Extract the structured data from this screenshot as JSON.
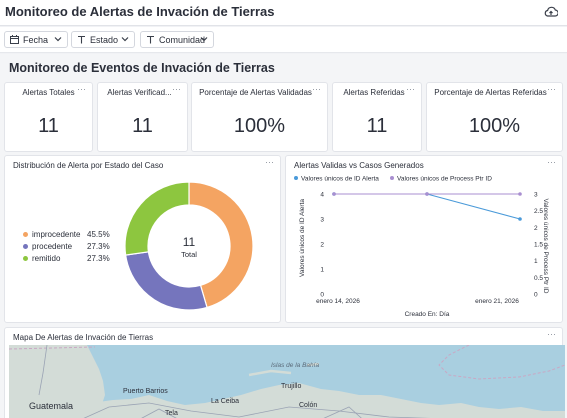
{
  "header": {
    "title": "Monitoreo de Alertas de Invación de Tierras",
    "upload_icon": "cloud-upload-icon"
  },
  "filters": [
    {
      "label": "Fecha",
      "icon": "calendar-icon"
    },
    {
      "label": "Estado",
      "icon": "text-type-icon"
    },
    {
      "label": "Comunidad",
      "icon": "text-type-icon"
    }
  ],
  "section": {
    "title": "Monitoreo de Eventos de Invación de Tierras"
  },
  "kpis": [
    {
      "title": "Alertas Totales",
      "value": "11"
    },
    {
      "title": "Alertas Verificad...",
      "value": "11"
    },
    {
      "title": "Porcentaje de Alertas Validadas",
      "value": "100%"
    },
    {
      "title": "Alertas Referidas",
      "value": "11"
    },
    {
      "title": "Porcentaje de Alertas Referidas",
      "value": "100%"
    }
  ],
  "menu_glyph": "···",
  "donut": {
    "title": "Distribución de Alerta por Estado del Caso",
    "center_value": "11",
    "center_label": "Total",
    "chart_data": {
      "type": "pie",
      "categories": [
        "improcedente",
        "procedente",
        "remitido"
      ],
      "values": [
        45.5,
        27.3,
        27.3
      ],
      "labels": [
        "45.5%",
        "27.3%",
        "27.3%"
      ],
      "colors": [
        "#f4a462",
        "#7575bd",
        "#8dc63f"
      ],
      "total": 11,
      "legend": "left"
    }
  },
  "linechart": {
    "title": "Alertas Validas vs Casos Generados",
    "chart_data": {
      "type": "line",
      "x": [
        "2026-01-12",
        "2026-01-19",
        "2026-01-26"
      ],
      "xticks": [
        "enero 14, 2026",
        "enero 21, 2026"
      ],
      "xlabel": "Creado En: Día",
      "series": [
        {
          "name": "Valores únicos de ID Alerta",
          "values": [
            4,
            4,
            3
          ],
          "color": "#4a9ad9",
          "axis": "left"
        },
        {
          "name": "Valores únicos de Process Ptr ID",
          "values": [
            3,
            3,
            3
          ],
          "color": "#a98fd0",
          "axis": "right"
        }
      ],
      "ylabel_left": "Valores únicos de ID Alerta",
      "ylabel_right": "Valores únicos de Process Ptr ID",
      "yticks_left": [
        "0",
        "1",
        "2",
        "3",
        "4"
      ],
      "yticks_right": [
        "0",
        "0.5",
        "1",
        "1.5",
        "2",
        "2.5",
        "3"
      ],
      "ylim_left": [
        0,
        4
      ],
      "ylim_right": [
        0,
        3
      ],
      "legend": "top-left"
    }
  },
  "map": {
    "title": "Mapa De Alertas de Invación de Tierras",
    "labels": {
      "guatemala": "Guatemala",
      "puerto_barrios": "Puerto Barrios",
      "islas": "Islas de la Bahía",
      "trujillo": "Trujillo",
      "la_ceiba": "La Ceiba",
      "tela": "Tela",
      "colon": "Colón"
    },
    "colors": {
      "sea": "#a9cfe0",
      "land": "#d3dcd7",
      "road": "#9aa3b4"
    }
  }
}
